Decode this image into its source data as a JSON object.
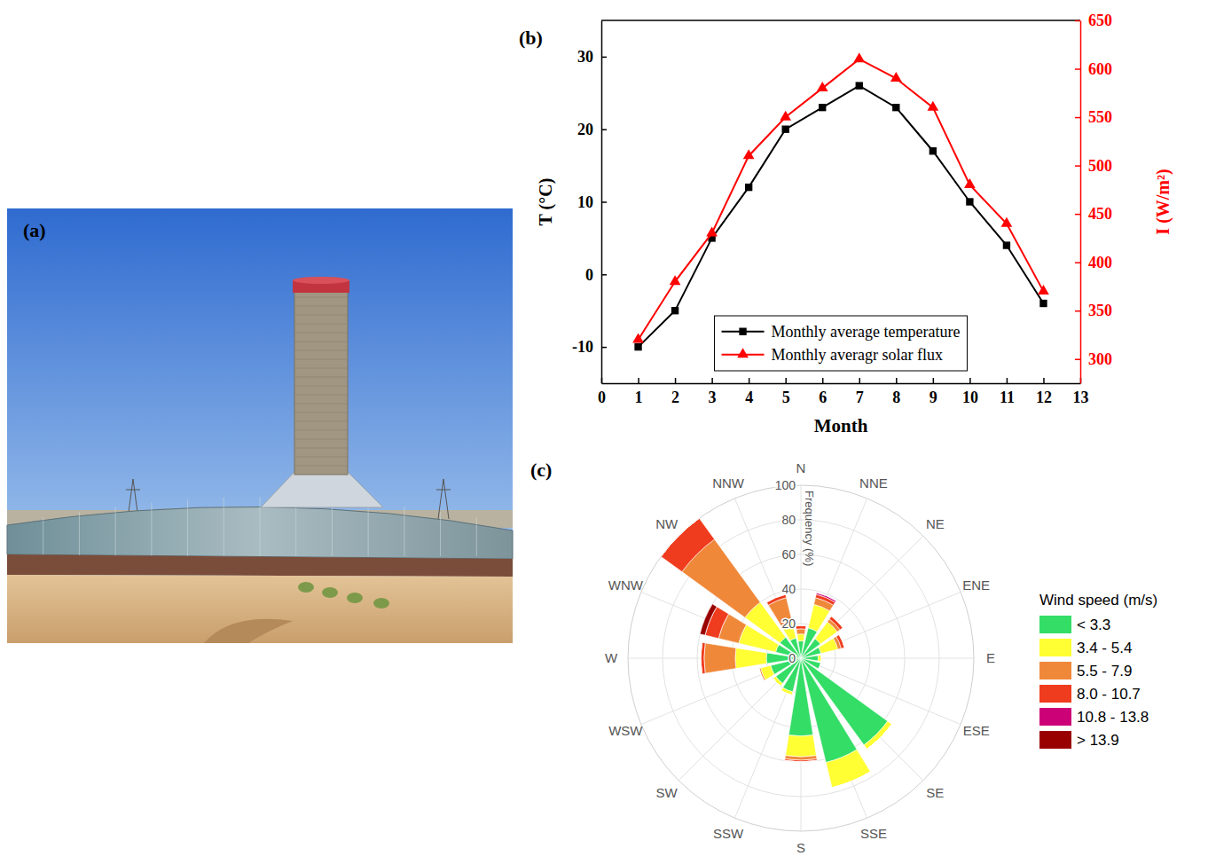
{
  "chart_data": [
    {
      "type": "image",
      "label": "(a)"
    },
    {
      "type": "line",
      "label": "(b)",
      "x_label": "Month",
      "y_label": "T (°C)",
      "y2_label": "I (W/m²)",
      "x": [
        1,
        2,
        3,
        4,
        5,
        6,
        7,
        8,
        9,
        10,
        11,
        12
      ],
      "xlim": [
        0,
        13
      ],
      "xticks": [
        0,
        1,
        2,
        3,
        4,
        5,
        6,
        7,
        8,
        9,
        10,
        11,
        12,
        13
      ],
      "ylim": [
        -15,
        35
      ],
      "yticks": [
        -10,
        0,
        10,
        20,
        30
      ],
      "y2lim": [
        275,
        650
      ],
      "y2ticks": [
        300,
        350,
        400,
        450,
        500,
        550,
        600,
        650
      ],
      "series": [
        {
          "name": "Monthly average temperature",
          "color": "#000000",
          "marker": "square",
          "values": [
            -10,
            -5,
            5,
            12,
            20,
            23,
            26,
            23,
            17,
            10,
            4,
            -4
          ]
        },
        {
          "name": "Monthly averagr solar flux",
          "color": "#ff0000",
          "marker": "triangle",
          "axis": "y2",
          "values": [
            320,
            380,
            430,
            510,
            550,
            580,
            610,
            590,
            560,
            480,
            440,
            370
          ]
        }
      ],
      "legend": "bottom"
    },
    {
      "type": "wind_rose",
      "label": "(c)",
      "stacked": true,
      "categories": [
        "N",
        "NNE",
        "NE",
        "ENE",
        "E",
        "ESE",
        "SE",
        "SSE",
        "S",
        "SSW",
        "SW",
        "WSW",
        "W",
        "WNW",
        "NW",
        "NNW"
      ],
      "y_label": "Frequency (%)",
      "ylim": [
        0,
        100
      ],
      "yticks": [
        0,
        20,
        40,
        60,
        80,
        100
      ],
      "legend_title": "Wind speed (m/s)",
      "legend": "right",
      "series": [
        {
          "name": "< 3.3",
          "color": "#33dd66",
          "values": [
            10,
            18,
            14,
            12,
            10,
            12,
            62,
            62,
            45,
            20,
            18,
            18,
            20,
            15,
            15,
            12
          ]
        },
        {
          "name": "3.4 - 5.4",
          "color": "#ffff33",
          "values": [
            4,
            14,
            12,
            10,
            2,
            0,
            3,
            15,
            12,
            2,
            2,
            6,
            18,
            22,
            25,
            10
          ]
        },
        {
          "name": "5.5 - 7.9",
          "color": "#f0883a",
          "values": [
            3,
            4,
            2,
            2,
            0,
            0,
            0,
            0,
            2,
            0,
            0,
            1,
            18,
            12,
            45,
            14
          ]
        },
        {
          "name": "8.0 - 10.7",
          "color": "#f03c1e",
          "values": [
            2,
            2,
            2,
            2,
            0,
            0,
            0,
            0,
            1,
            0,
            0,
            0,
            2,
            8,
            15,
            2
          ]
        },
        {
          "name": "10.8 - 13.8",
          "color": "#cc0077",
          "values": [
            0,
            1,
            0,
            0,
            0,
            0,
            0,
            0,
            0,
            0,
            0,
            0,
            0,
            0,
            0,
            0
          ]
        },
        {
          "name": "> 13.9",
          "color": "#990000",
          "values": [
            0,
            0,
            0,
            0,
            0,
            0,
            0,
            0,
            0,
            0,
            0,
            0,
            0,
            3,
            0,
            0
          ]
        }
      ]
    }
  ]
}
